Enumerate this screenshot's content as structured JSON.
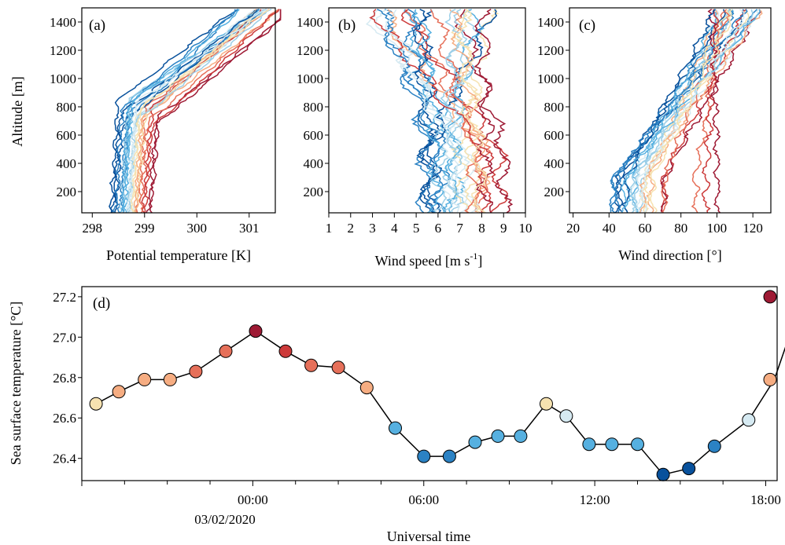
{
  "colors": {
    "axis": "#000000",
    "scale": [
      "#08519c",
      "#2b82c4",
      "#56b0e0",
      "#9ccfe8",
      "#d6eaf2",
      "#f6e2b0",
      "#f6ad82",
      "#e6705a",
      "#cc3a3a",
      "#9e1a34"
    ]
  },
  "chart_data": [
    {
      "type": "line",
      "panel_label": "(a)",
      "xlabel": "Potential temperature [K]",
      "ylabel": "Altitude [m]",
      "xlim": [
        297.8,
        301.5
      ],
      "ylim": [
        50,
        1500
      ],
      "xticks": [
        "298",
        "299",
        "300",
        "301"
      ],
      "yticks": [
        "200",
        "400",
        "600",
        "800",
        "1000",
        "1200",
        "1400"
      ],
      "profile_count": 26,
      "profile_summary": {
        "lower_layer_theta_range": [
          298.3,
          299.2
        ],
        "theta_at_1400m": [
          300.6,
          301.5
        ]
      }
    },
    {
      "type": "line",
      "panel_label": "(b)",
      "xlabel": "Wind speed [m s",
      "xlabel_sup": "-1",
      "xlabel_end": "]",
      "ylabel": "",
      "xlim": [
        1,
        10
      ],
      "ylim": [
        50,
        1500
      ],
      "xticks": [
        "1",
        "2",
        "3",
        "4",
        "5",
        "6",
        "7",
        "8",
        "9",
        "10"
      ],
      "yticks": [
        "200",
        "400",
        "600",
        "800",
        "1000",
        "1200",
        "1400"
      ],
      "profile_count": 26,
      "profile_summary": {
        "speed_near_surface": [
          5,
          9.5
        ],
        "speed_at_1400m": [
          3,
          9
        ]
      }
    },
    {
      "type": "line",
      "panel_label": "(c)",
      "xlabel": "Wind direction [°]",
      "ylabel": "",
      "xlim": [
        18,
        130
      ],
      "ylim": [
        50,
        1500
      ],
      "xticks": [
        "20",
        "40",
        "60",
        "80",
        "100",
        "120"
      ],
      "yticks": [
        "200",
        "400",
        "600",
        "800",
        "1000",
        "1200",
        "1400"
      ],
      "profile_count": 26,
      "profile_summary": {
        "direction_near_surface": [
          35,
          95
        ],
        "direction_at_1400m": [
          90,
          125
        ]
      }
    },
    {
      "type": "scatter",
      "panel_label": "(d)",
      "xlabel": "Universal time",
      "ylabel": "Sea surface temperature [°C]",
      "xlim": [
        -6.0,
        18.4
      ],
      "ylim": [
        26.29,
        27.25
      ],
      "xticks": [
        "00:00",
        "06:00",
        "12:00",
        "18:00"
      ],
      "date_label": "03/02/2020",
      "yticks": [
        "26.4",
        "26.6",
        "26.8",
        "27.0",
        "27.2"
      ],
      "points": [
        {
          "t": -5.5,
          "v": 26.67,
          "c": 5
        },
        {
          "t": -4.7,
          "v": 26.73,
          "c": 6
        },
        {
          "t": -3.8,
          "v": 26.79,
          "c": 6
        },
        {
          "t": -2.9,
          "v": 26.79,
          "c": 6
        },
        {
          "t": -2.0,
          "v": 26.83,
          "c": 7
        },
        {
          "t": -0.95,
          "v": 26.93,
          "c": 7
        },
        {
          "t": 0.1,
          "v": 27.03,
          "c": 9
        },
        {
          "t": 1.15,
          "v": 26.93,
          "c": 8
        },
        {
          "t": 2.05,
          "v": 26.86,
          "c": 7
        },
        {
          "t": 3.0,
          "v": 26.85,
          "c": 7
        },
        {
          "t": 4.0,
          "v": 26.75,
          "c": 6
        },
        {
          "t": 5.0,
          "v": 26.55,
          "c": 2
        },
        {
          "t": 6.0,
          "v": 26.41,
          "c": 1
        },
        {
          "t": 6.9,
          "v": 26.41,
          "c": 1
        },
        {
          "t": 7.8,
          "v": 26.48,
          "c": 2
        },
        {
          "t": 8.6,
          "v": 26.51,
          "c": 2
        },
        {
          "t": 9.4,
          "v": 26.51,
          "c": 2
        },
        {
          "t": 10.3,
          "v": 26.67,
          "c": 5
        },
        {
          "t": 11.0,
          "v": 26.61,
          "c": 4
        },
        {
          "t": 11.8,
          "v": 26.47,
          "c": 2
        },
        {
          "t": 12.6,
          "v": 26.47,
          "c": 2
        },
        {
          "t": 13.5,
          "v": 26.47,
          "c": 2
        },
        {
          "t": 14.4,
          "v": 26.32,
          "c": 0
        },
        {
          "t": 15.3,
          "v": 26.35,
          "c": 0
        },
        {
          "t": 16.2,
          "v": 26.46,
          "c": 1
        },
        {
          "t": 17.4,
          "v": 26.59,
          "c": 4
        },
        {
          "t": 18.3,
          "v": 26.79,
          "c": 6
        },
        {
          "t": 19.3,
          "v": 27.2,
          "c": 9
        }
      ]
    }
  ]
}
